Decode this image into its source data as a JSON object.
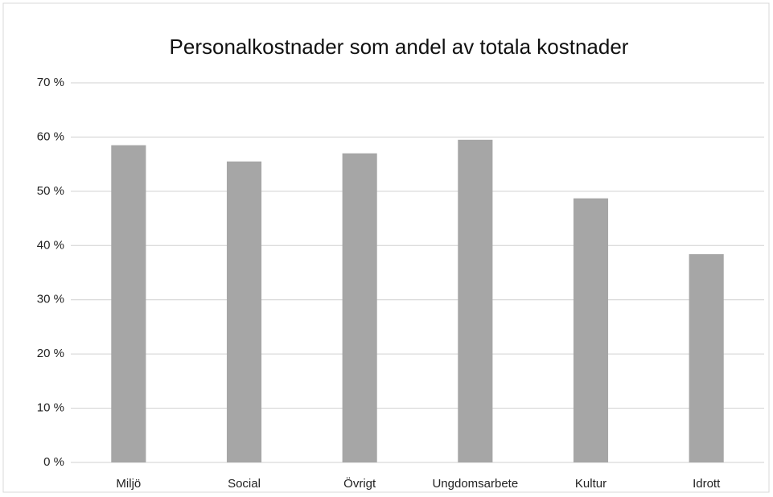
{
  "chart_data": {
    "type": "bar",
    "title": "Personalkostnader som andel av totala kostnader",
    "categories": [
      "Miljö",
      "Social",
      "Övrigt",
      "Ungdomsarbete",
      "Kultur",
      "Idrott"
    ],
    "values": [
      58.5,
      55.5,
      57,
      59.5,
      48.7,
      38.4
    ],
    "color": "#a6a6a6",
    "ylim": [
      0,
      70
    ],
    "yticks": [
      {
        "value": 0,
        "label": "0 %"
      },
      {
        "value": 10,
        "label": "10 %"
      },
      {
        "value": 20,
        "label": "20 %"
      },
      {
        "value": 30,
        "label": "30 %"
      },
      {
        "value": 40,
        "label": "40 %"
      },
      {
        "value": 50,
        "label": "50 %"
      },
      {
        "value": 60,
        "label": "60 %"
      },
      {
        "value": 70,
        "label": "70 %"
      }
    ],
    "grid": true
  }
}
